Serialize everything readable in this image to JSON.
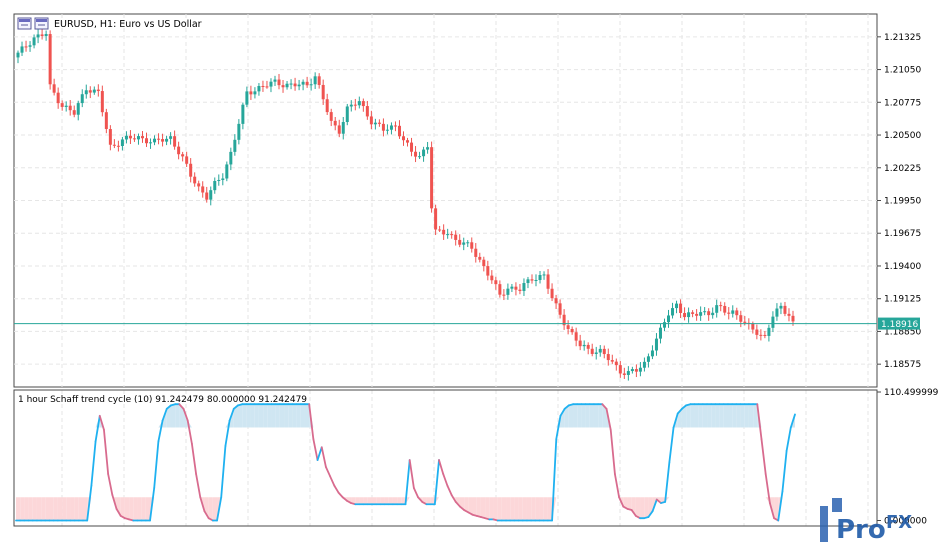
{
  "chart_header": {
    "symbol_title": "EURUSD, H1:  Euro vs US Dollar"
  },
  "price_panel": {
    "current_price_label": "1.18916",
    "current_price": 1.18916,
    "ylim": [
      1.184,
      1.215
    ],
    "y_ticks": [
      "1.21325",
      "1.21050",
      "1.20775",
      "1.20500",
      "1.20225",
      "1.19950",
      "1.19675",
      "1.19400",
      "1.19125",
      "1.18850",
      "1.18575"
    ],
    "colors": {
      "bull": "#26a69a",
      "bear": "#ef5350",
      "price_line": "#26a69a",
      "price_box": "#26a69a"
    }
  },
  "indicator_panel": {
    "label": "1 hour Schaff trend cycle (10) 91.242479 80.000000 91.242479",
    "ylim": [
      -3,
      110.499999
    ],
    "y_ticks": [
      "110.499999",
      "0.000000"
    ],
    "upper_level": 80,
    "lower_level": 20,
    "colors": {
      "rising": "#1fb1f0",
      "falling": "#d86b8e",
      "upper_fill": "#cfe6f2",
      "lower_fill": "#fcd7d9"
    }
  },
  "chart_data": [
    {
      "type": "candlestick",
      "title": "EURUSD, H1:  Euro vs US Dollar",
      "ylim": [
        1.184,
        1.215
      ],
      "close_path": [
        [
          0,
          1.2118
        ],
        [
          4,
          1.2132
        ],
        [
          7,
          1.2135
        ],
        [
          8,
          1.209
        ],
        [
          11,
          1.2075
        ],
        [
          14,
          1.2068
        ],
        [
          17,
          1.209
        ],
        [
          20,
          1.2085
        ],
        [
          23,
          1.204
        ],
        [
          26,
          1.2046
        ],
        [
          30,
          1.2048
        ],
        [
          34,
          1.2044
        ],
        [
          38,
          1.2048
        ],
        [
          41,
          1.203
        ],
        [
          43,
          1.2016
        ],
        [
          45,
          1.2006
        ],
        [
          47,
          1.1998
        ],
        [
          49,
          1.2008
        ],
        [
          51,
          1.2016
        ],
        [
          53,
          1.2035
        ],
        [
          55,
          1.206
        ],
        [
          57,
          1.2085
        ],
        [
          60,
          1.209
        ],
        [
          64,
          1.2094
        ],
        [
          68,
          1.2092
        ],
        [
          72,
          1.2092
        ],
        [
          74,
          1.21
        ],
        [
          76,
          1.208
        ],
        [
          78,
          1.206
        ],
        [
          80,
          1.2054
        ],
        [
          82,
          1.2072
        ],
        [
          85,
          1.2078
        ],
        [
          88,
          1.2062
        ],
        [
          91,
          1.2054
        ],
        [
          94,
          1.2058
        ],
        [
          96,
          1.2046
        ],
        [
          98,
          1.2035
        ],
        [
          100,
          1.2032
        ],
        [
          102,
          1.2042
        ],
        [
          103,
          1.199
        ],
        [
          104,
          1.1968
        ],
        [
          107,
          1.1968
        ],
        [
          110,
          1.196
        ],
        [
          113,
          1.1955
        ],
        [
          115,
          1.1945
        ],
        [
          118,
          1.1928
        ],
        [
          120,
          1.1915
        ],
        [
          122,
          1.1922
        ],
        [
          125,
          1.192
        ],
        [
          128,
          1.193
        ],
        [
          131,
          1.1932
        ],
        [
          133,
          1.1912
        ],
        [
          135,
          1.19
        ],
        [
          137,
          1.1887
        ],
        [
          140,
          1.1873
        ],
        [
          142,
          1.187
        ],
        [
          145,
          1.1868
        ],
        [
          147,
          1.1862
        ],
        [
          150,
          1.1852
        ],
        [
          152,
          1.185
        ],
        [
          154,
          1.1852
        ],
        [
          156,
          1.1858
        ],
        [
          158,
          1.1872
        ],
        [
          160,
          1.1885
        ],
        [
          162,
          1.19
        ],
        [
          164,
          1.1908
        ],
        [
          166,
          1.1898
        ],
        [
          168,
          1.1898
        ],
        [
          170,
          1.1902
        ],
        [
          172,
          1.19
        ],
        [
          174,
          1.1905
        ],
        [
          176,
          1.1902
        ],
        [
          178,
          1.1902
        ],
        [
          180,
          1.1895
        ],
        [
          182,
          1.1888
        ],
        [
          184,
          1.1885
        ],
        [
          186,
          1.188
        ],
        [
          188,
          1.1898
        ],
        [
          190,
          1.1905
        ],
        [
          192,
          1.19
        ],
        [
          193,
          1.1892
        ]
      ]
    },
    {
      "type": "line",
      "title": "1 hour Schaff trend cycle (10) 91.242479 80.000000 91.242479",
      "ylim": [
        -3,
        110.499999
      ],
      "y": [
        0,
        0,
        0,
        0,
        0,
        0,
        0,
        0,
        0,
        0,
        0,
        0,
        0,
        0,
        0,
        0,
        0,
        0,
        30,
        68,
        90,
        78,
        40,
        22,
        10,
        4,
        2,
        1,
        0,
        0,
        0,
        0,
        0,
        28,
        68,
        86,
        96,
        99,
        100,
        100,
        96,
        86,
        66,
        40,
        20,
        8,
        2,
        0,
        0,
        20,
        64,
        86,
        96,
        99,
        100,
        100,
        100,
        100,
        100,
        100,
        100,
        100,
        100,
        100,
        100,
        100,
        100,
        100,
        100,
        100,
        100,
        70,
        52,
        63,
        46,
        38,
        30,
        24,
        20,
        17,
        15,
        14,
        14,
        14,
        14,
        14,
        14,
        14,
        14,
        14,
        14,
        14,
        14,
        14,
        52,
        28,
        20,
        16,
        14,
        14,
        14,
        52,
        40,
        30,
        22,
        16,
        12,
        9,
        7,
        5,
        4,
        3,
        2,
        1,
        1,
        0,
        0,
        0,
        0,
        0,
        0,
        0,
        0,
        0,
        0,
        0,
        0,
        0,
        0,
        70,
        90,
        96,
        99,
        100,
        100,
        100,
        100,
        100,
        100,
        100,
        100,
        96,
        78,
        40,
        20,
        12,
        10,
        9,
        4,
        2,
        2,
        3,
        8,
        18,
        15,
        16,
        50,
        80,
        92,
        96,
        99,
        100,
        100,
        100,
        100,
        100,
        100,
        100,
        100,
        100,
        100,
        100,
        100,
        100,
        100,
        100,
        100,
        100,
        70,
        40,
        15,
        2,
        0,
        25,
        60,
        80,
        91.2
      ],
      "levels": [
        80,
        20
      ]
    }
  ],
  "watermark": {
    "text_a": "Pro",
    "text_b": "FX"
  }
}
